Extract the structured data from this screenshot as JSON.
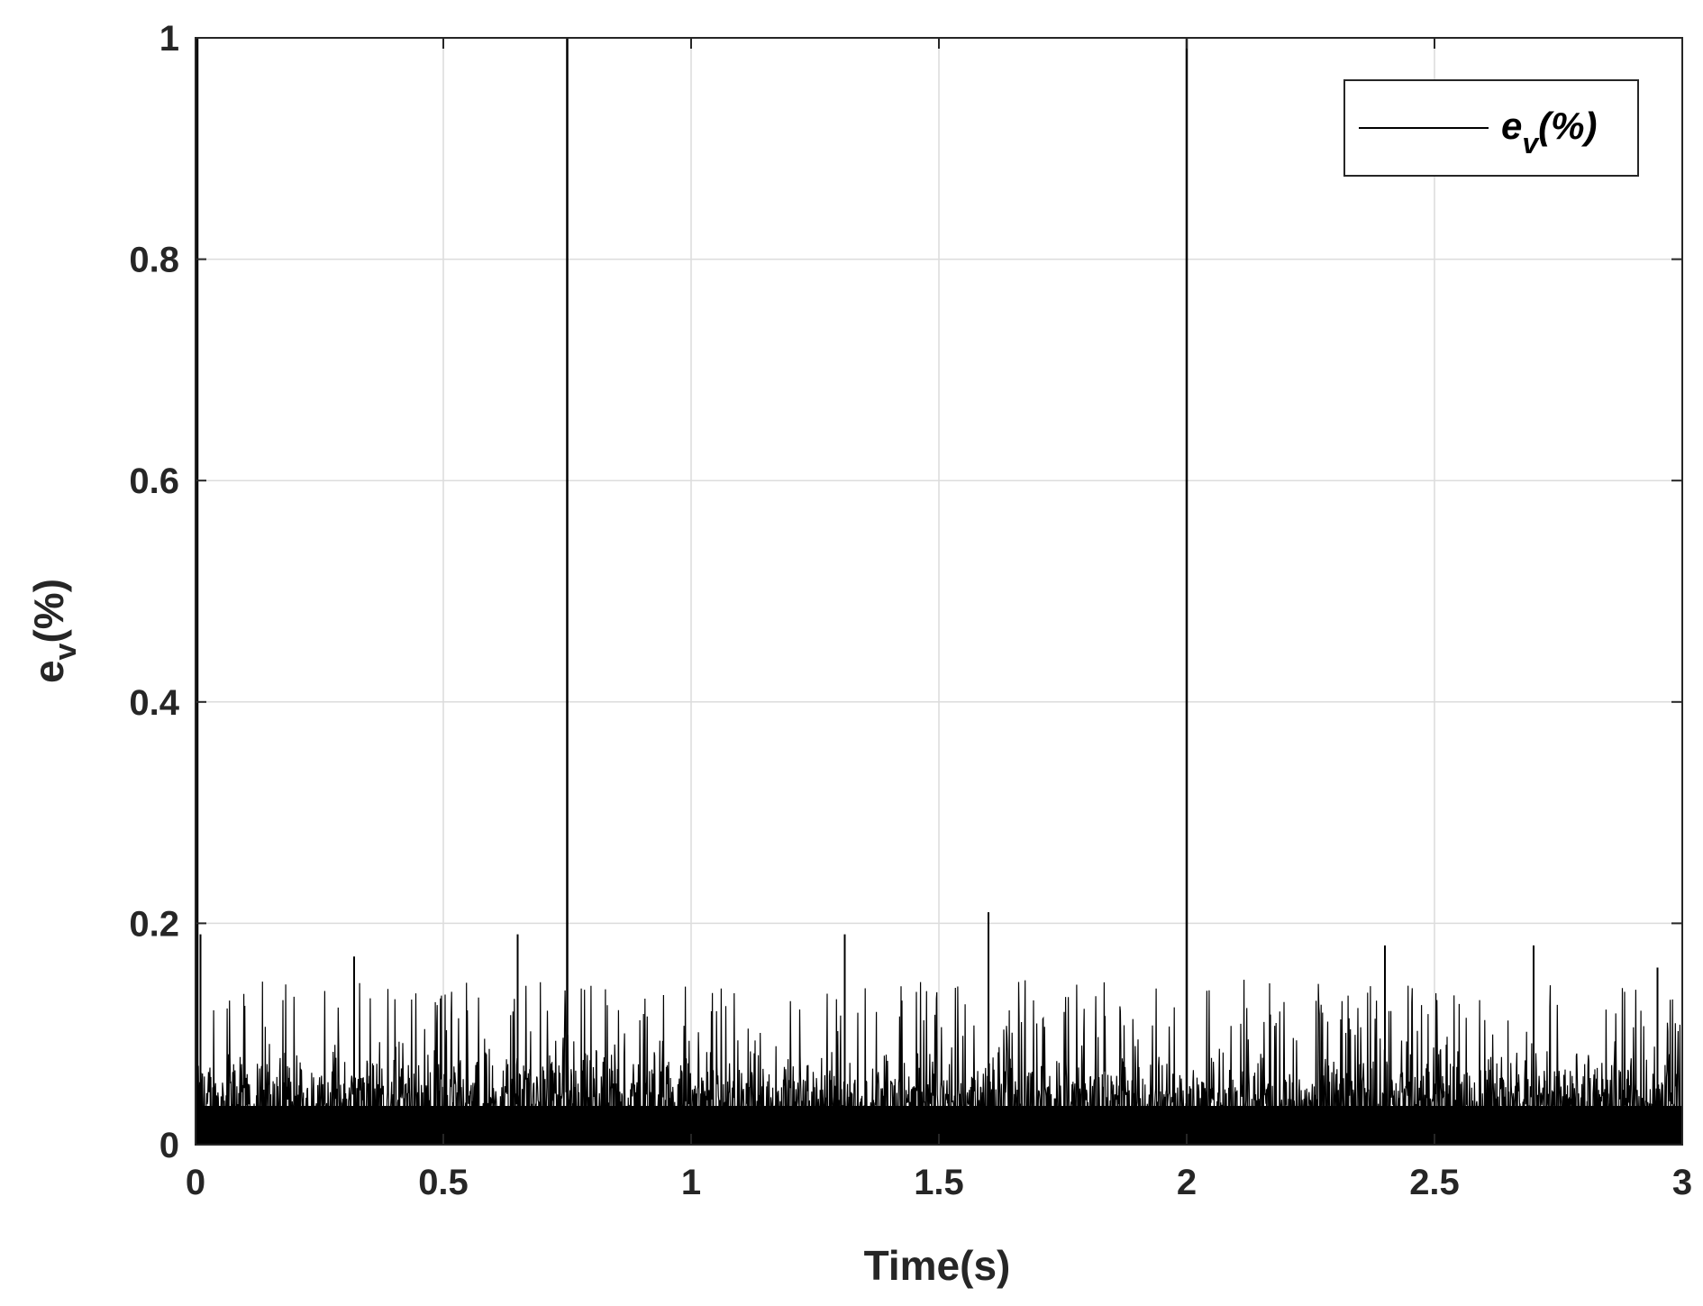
{
  "chart_data": {
    "type": "line",
    "xlabel": "Time(s)",
    "ylabel": {
      "base": "e",
      "sub": "v",
      "rest": "(%)"
    },
    "xlim": [
      0,
      3
    ],
    "ylim": [
      0,
      1
    ],
    "xticks": [
      0,
      0.5,
      1,
      1.5,
      2,
      2.5,
      3
    ],
    "xtick_labels": [
      "0",
      "0.5",
      "1",
      "1.5",
      "2",
      "2.5",
      "3"
    ],
    "yticks": [
      0,
      0.2,
      0.4,
      0.6,
      0.8,
      1
    ],
    "ytick_labels": [
      "0",
      "0.2",
      "0.4",
      "0.6",
      "0.8",
      "1"
    ],
    "grid": true,
    "legend": {
      "position": "top-right",
      "entries": [
        {
          "base": "e",
          "sub": "v",
          "rest": "(%)"
        }
      ]
    },
    "series": [
      {
        "color": "#000000",
        "description": "noisy error signal, baseline approx 0.00-0.08 with frequent peaks up to ~0.15-0.21",
        "baseline_max": 0.08,
        "typical_peak": 0.15,
        "max_peak": {
          "x": 1.6,
          "y": 0.21
        },
        "spikes": [
          {
            "x": 0.0,
            "y": 1.0
          },
          {
            "x": 0.75,
            "y": 1.0
          },
          {
            "x": 2.0,
            "y": 1.0
          }
        ],
        "notable_peaks": [
          {
            "x": 0.01,
            "y": 0.19
          },
          {
            "x": 0.32,
            "y": 0.17
          },
          {
            "x": 0.65,
            "y": 0.19
          },
          {
            "x": 1.31,
            "y": 0.19
          },
          {
            "x": 1.6,
            "y": 0.21
          },
          {
            "x": 2.4,
            "y": 0.18
          },
          {
            "x": 2.7,
            "y": 0.18
          },
          {
            "x": 2.95,
            "y": 0.16
          }
        ]
      }
    ]
  }
}
